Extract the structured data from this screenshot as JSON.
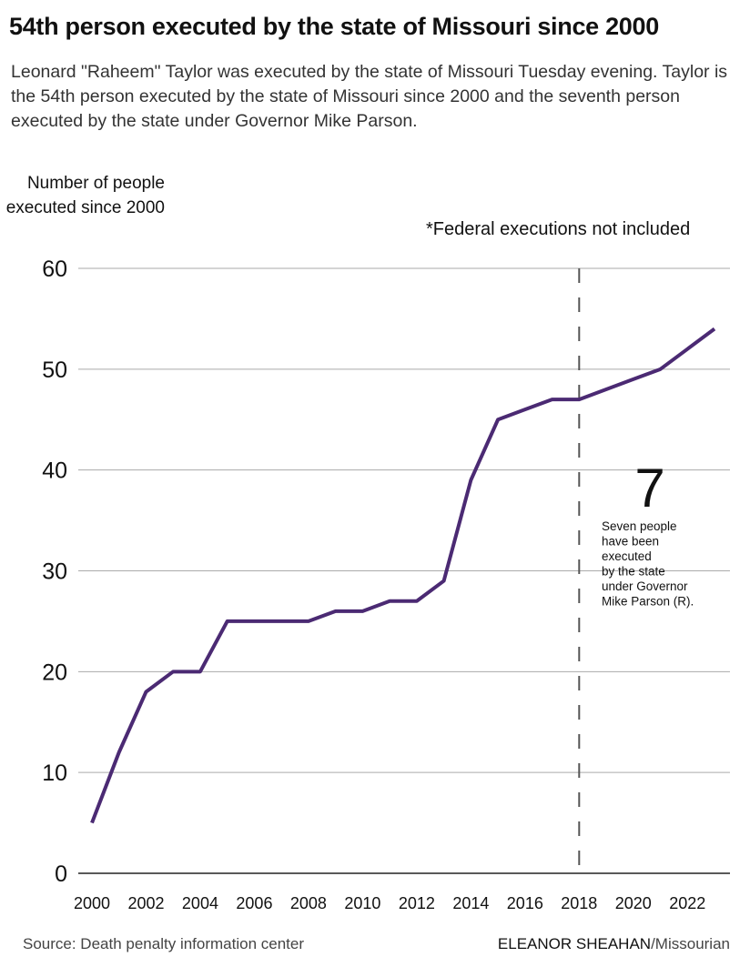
{
  "title": "54th person executed by the state of Missouri since 2000",
  "subtitle": "Leonard \"Raheem\" Taylor was executed by the state of Missouri Tuesday evening. Taylor is the 54th person executed by the state of Missouri since 2000 and the seventh person executed by the state under Governor Mike Parson.",
  "note": "*Federal executions not included",
  "source": "Source: Death penalty information center",
  "credit_author": "ELEANOR SHEAHAN",
  "credit_pub": "/Missourian",
  "chart_data": {
    "type": "line",
    "ylabel": "Number of people executed since 2000",
    "x": [
      2000,
      2001,
      2002,
      2003,
      2004,
      2005,
      2006,
      2007,
      2008,
      2009,
      2010,
      2011,
      2012,
      2013,
      2014,
      2015,
      2016,
      2017,
      2018,
      2019,
      2020,
      2021,
      2022,
      2023
    ],
    "y": [
      5,
      12,
      18,
      20,
      20,
      25,
      25,
      25,
      25,
      26,
      26,
      27,
      27,
      29,
      39,
      45,
      46,
      47,
      47,
      48,
      49,
      50,
      52,
      54
    ],
    "xlim": [
      2000,
      2023
    ],
    "ylim": [
      0,
      60
    ],
    "yticks": [
      0,
      10,
      20,
      30,
      40,
      50,
      60
    ],
    "xticks": [
      2000,
      2002,
      2004,
      2006,
      2008,
      2010,
      2012,
      2014,
      2016,
      2018,
      2020,
      2022
    ],
    "grid": "horizontal",
    "line_color": "#4b2a73",
    "annotation": {
      "x": 2018,
      "marker": "dashed vertical line",
      "big_number": "7",
      "text": [
        "Seven people",
        "have been",
        "executed",
        "by the state",
        "under Governor",
        "Mike Parson (R)."
      ]
    }
  }
}
